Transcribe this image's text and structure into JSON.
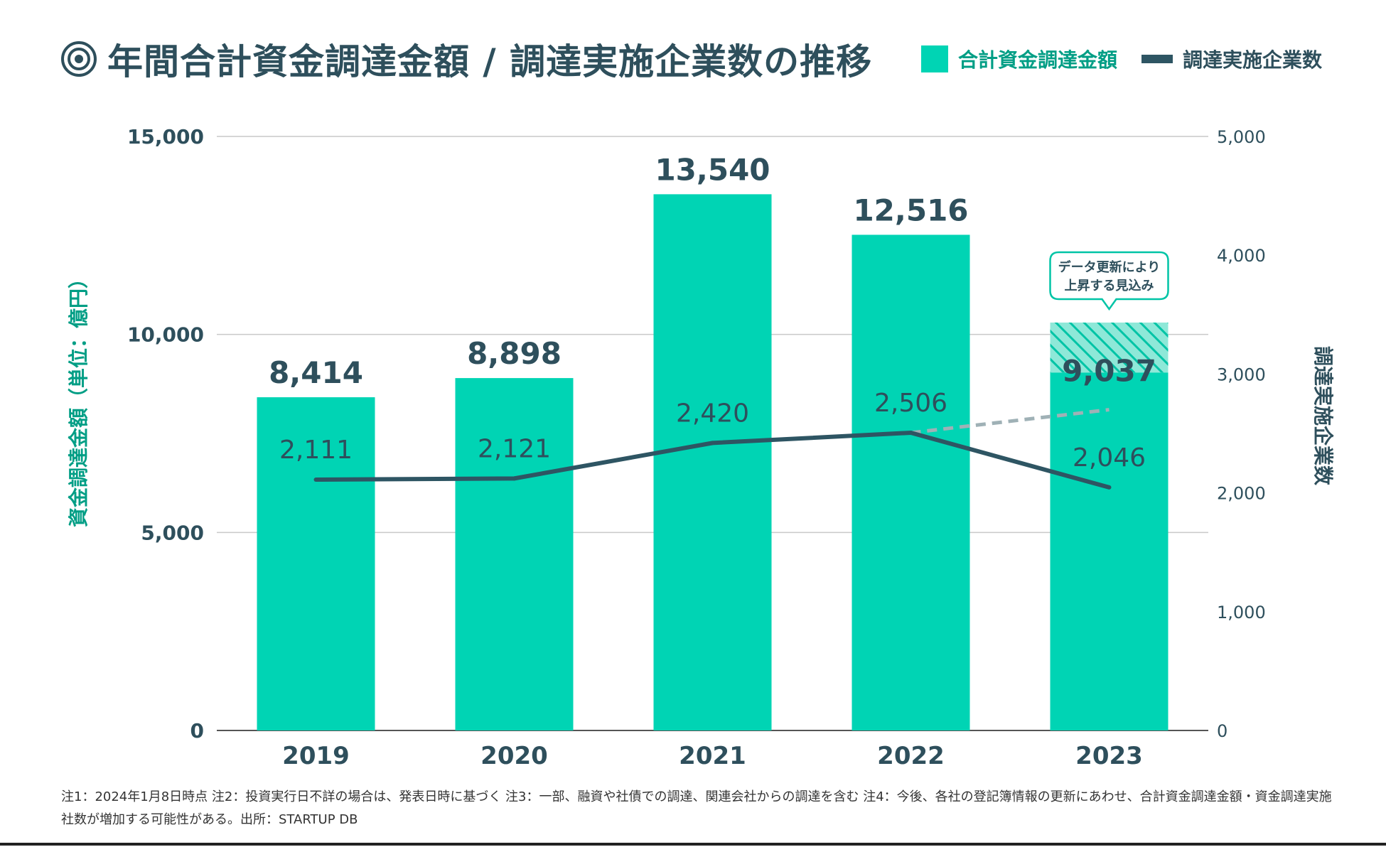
{
  "title": "年間合計資金調達金額 / 調達実施企業数の推移",
  "legend": {
    "bar_label": "合計資金調達金額",
    "line_label": "調達実施企業数"
  },
  "colors": {
    "bar": "#00d4b4",
    "bar_text": "#009e85",
    "line": "#2e5563",
    "dashed": "#9fb1b6",
    "grid": "#c9c9c9",
    "text_dark": "#2e4f5c"
  },
  "chart_data": {
    "type": "bar",
    "title": "年間合計資金調達金額 / 調達実施企業数の推移",
    "categories": [
      "2019",
      "2020",
      "2021",
      "2022",
      "2023"
    ],
    "ylabel": "資金調達金額（単位：億円）",
    "y2label": "調達実施企業数",
    "ylim": [
      0,
      15000
    ],
    "y2lim": [
      0,
      5000
    ],
    "yticks": [
      "0",
      "5,000",
      "10,000",
      "15,000"
    ],
    "y2ticks": [
      "0",
      "1,000",
      "2,000",
      "3,000",
      "4,000",
      "5,000"
    ],
    "series": [
      {
        "name": "合計資金調達金額",
        "type": "bar",
        "axis": "left",
        "values": [
          8414,
          8898,
          13540,
          12516,
          9037
        ],
        "labels": [
          "8,414",
          "8,898",
          "13,540",
          "12,516",
          "9,037"
        ],
        "projected_extension": {
          "category": "2023",
          "top_value": 10300
        }
      },
      {
        "name": "調達実施企業数",
        "type": "line",
        "axis": "right",
        "values": [
          2111,
          2121,
          2420,
          2506,
          2046
        ],
        "labels": [
          "2,111",
          "2,121",
          "2,420",
          "2,506",
          "2,046"
        ],
        "projected_dashed": {
          "from": "2022",
          "to": "2023",
          "to_value": 2700
        }
      }
    ],
    "callout": {
      "lines": [
        "データ更新により",
        "上昇する見込み"
      ],
      "category": "2023"
    }
  },
  "footnote": "注1：2024年1月8日時点 注2：投資実行日不詳の場合は、発表日時に基づく 注3：一部、融資や社債での調達、関連会社からの調達を含む 注4：今後、各社の登記簿情報の更新にあわせ、合計資金調達金額・資金調達実施社数が増加する可能性がある。出所：STARTUP DB"
}
